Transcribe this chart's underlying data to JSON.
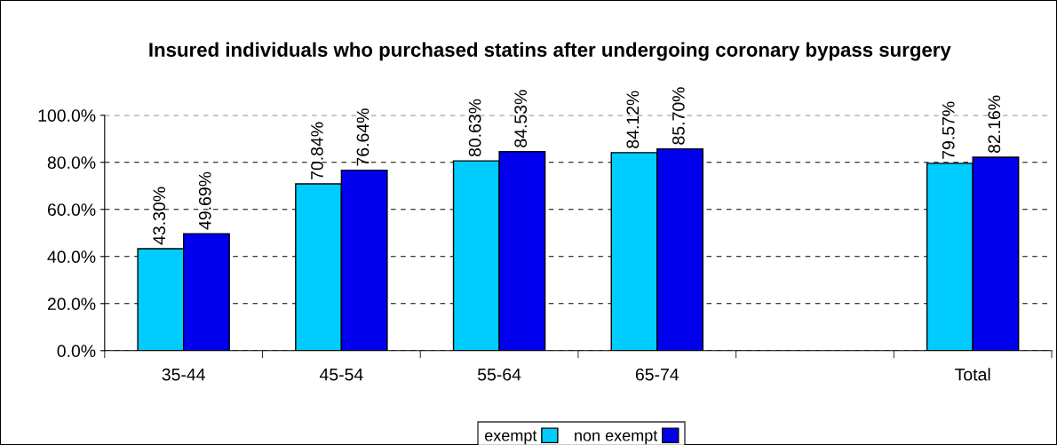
{
  "chart_data": {
    "type": "bar",
    "title": "Insured individuals who purchased statins after undergoing coronary bypass surgery",
    "categories": [
      "35-44",
      "45-54",
      "55-64",
      "65-74",
      null,
      "Total"
    ],
    "series": [
      {
        "name": "exempt",
        "color": "#00ccff",
        "values": [
          43.3,
          70.84,
          80.63,
          84.12,
          null,
          79.57
        ],
        "value_labels": [
          "43.30%",
          "70.84%",
          "80.63%",
          "84.12%",
          null,
          "79.57%"
        ]
      },
      {
        "name": "non exempt",
        "color": "#0000ee",
        "values": [
          49.69,
          76.64,
          84.53,
          85.7,
          null,
          82.16
        ],
        "value_labels": [
          "49.69%",
          "76.64%",
          "84.53%",
          "85.70%",
          null,
          "82.16%"
        ]
      }
    ],
    "ylim": [
      0,
      100
    ],
    "yticks": [
      {
        "value": 0,
        "label": "0.0%"
      },
      {
        "value": 20,
        "label": "20.0%"
      },
      {
        "value": 40,
        "label": "40.0%"
      },
      {
        "value": 60,
        "label": "60.0%"
      },
      {
        "value": 80,
        "label": "80.0%"
      },
      {
        "value": 100,
        "label": "100.0%"
      }
    ],
    "grid": "y",
    "legend": "bottom"
  }
}
